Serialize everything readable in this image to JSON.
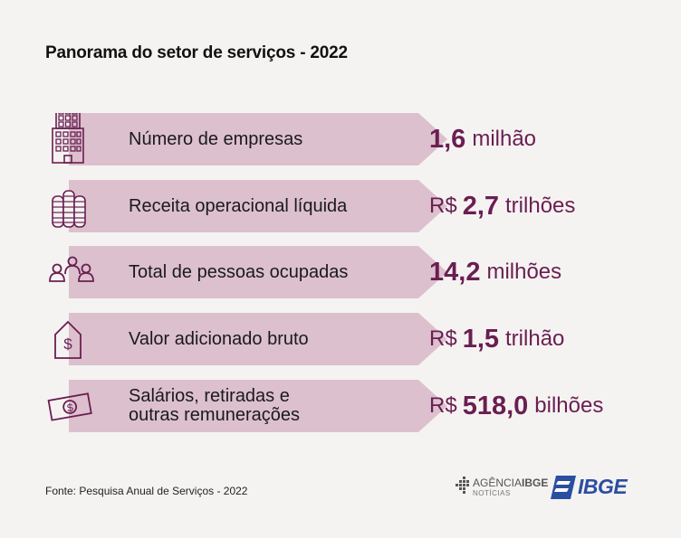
{
  "title": "Panorama do setor de serviços - 2022",
  "rows": [
    {
      "label": "Número de empresas",
      "prefix": "",
      "number": "1,6",
      "unit": "milhão",
      "icon": "building-icon"
    },
    {
      "label": "Receita operacional líquida",
      "prefix": "R$",
      "number": "2,7",
      "unit": "trilhões",
      "icon": "coins-stack-icon"
    },
    {
      "label": "Total de pessoas ocupadas",
      "prefix": "",
      "number": "14,2",
      "unit": "milhões",
      "icon": "people-group-icon"
    },
    {
      "label": "Valor adicionado bruto",
      "prefix": "R$",
      "number": "1,5",
      "unit": "trilhão",
      "icon": "price-tag-dollar-icon"
    },
    {
      "label": "Salários, retiradas e\noutras remunerações",
      "label_line1": "Salários, retiradas e",
      "label_line2": "outras remunerações",
      "prefix": "R$",
      "number": "518,0",
      "unit": "bilhões",
      "icon": "banknote-icon"
    }
  ],
  "source": "Fonte: Pesquisa Anual de Serviços - 2022",
  "logos": {
    "agencia_line1a": "AGÊNCIA",
    "agencia_line1b": "IBGE",
    "agencia_line2": "NOTÍCIAS",
    "ibge": "IBGE"
  },
  "colors": {
    "arrow": "#dcc0cd",
    "value": "#6a1e52",
    "icon": "#6a1e52",
    "ibge_blue": "#2b4fa0"
  }
}
